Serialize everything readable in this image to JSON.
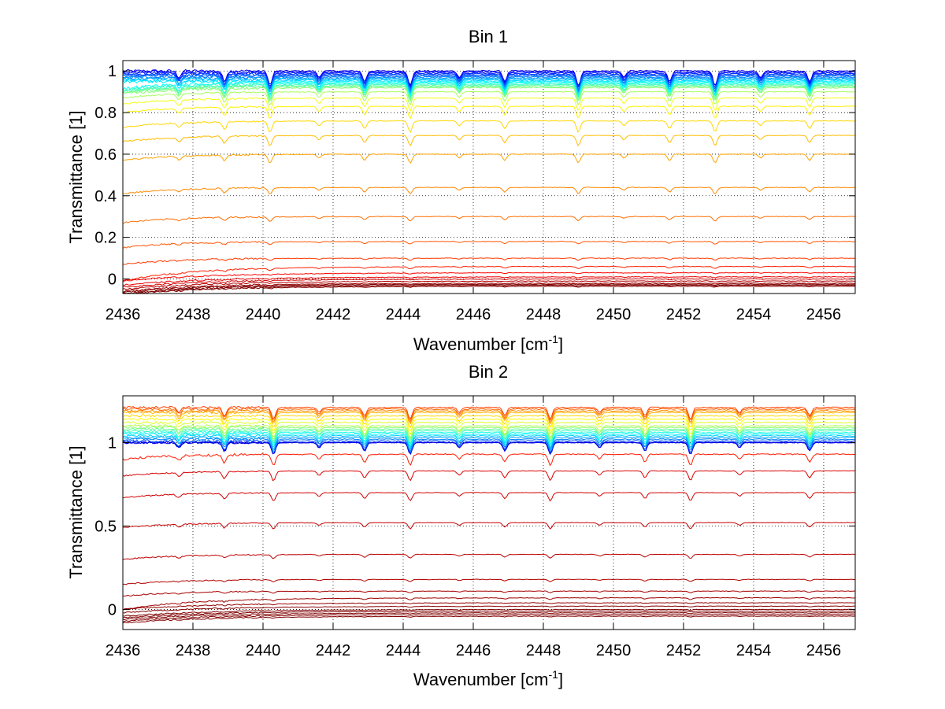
{
  "chart_data": [
    {
      "type": "line",
      "title": "Bin 1",
      "xlabel_main": "Wavenumber [cm",
      "xlabel_sup": "-1",
      "xlabel_end": "]",
      "ylabel": "Transmittance [1]",
      "xlim": [
        2436,
        2456.9
      ],
      "ylim": [
        -0.07,
        1.05
      ],
      "xticks": [
        2436,
        2438,
        2440,
        2442,
        2444,
        2446,
        2448,
        2450,
        2452,
        2454,
        2456
      ],
      "xtick_labels": [
        "2436",
        "2438",
        "2440",
        "2442",
        "2444",
        "2446",
        "2448",
        "2450",
        "2452",
        "2454",
        "2456"
      ],
      "yticks": [
        0,
        0.2,
        0.4,
        0.6,
        0.8,
        1
      ],
      "ytick_labels": [
        "0",
        "0.2",
        "0.4",
        "0.6",
        "0.8",
        "1"
      ],
      "grid": true,
      "colormap": "jet",
      "series_baselines": [
        1.0,
        0.995,
        0.99,
        0.985,
        0.98,
        0.975,
        0.97,
        0.965,
        0.96,
        0.955,
        0.95,
        0.945,
        0.94,
        0.935,
        0.93,
        0.925,
        0.92,
        0.9,
        0.87,
        0.83,
        0.76,
        0.69,
        0.6,
        0.44,
        0.3,
        0.18,
        0.1,
        0.06,
        0.03,
        0.01,
        0.0,
        -0.01,
        -0.02,
        -0.025,
        -0.03,
        -0.035
      ],
      "absorption_lines": [
        2437.6,
        2438.9,
        2440.2,
        2441.6,
        2442.9,
        2444.2,
        2445.6,
        2446.9,
        2449.0,
        2450.3,
        2451.6,
        2452.9,
        2454.2,
        2455.6
      ]
    },
    {
      "type": "line",
      "title": "Bin 2",
      "xlabel_main": "Wavenumber [cm",
      "xlabel_sup": "-1",
      "xlabel_end": "]",
      "ylabel": "Transmittance [1]",
      "xlim": [
        2436,
        2456.9
      ],
      "ylim": [
        -0.12,
        1.28
      ],
      "xticks": [
        2436,
        2438,
        2440,
        2442,
        2444,
        2446,
        2448,
        2450,
        2452,
        2454,
        2456
      ],
      "xtick_labels": [
        "2436",
        "2438",
        "2440",
        "2442",
        "2444",
        "2446",
        "2448",
        "2450",
        "2452",
        "2454",
        "2456"
      ],
      "yticks": [
        0,
        0.5,
        1
      ],
      "ytick_labels": [
        "0",
        "0.5",
        "1"
      ],
      "grid": true,
      "colormap": "jet",
      "series_baselines": [
        1.0,
        1.0,
        1.0,
        1.01,
        1.02,
        1.03,
        1.04,
        1.05,
        1.06,
        1.07,
        1.08,
        1.09,
        1.1,
        1.12,
        1.14,
        1.16,
        1.18,
        1.19,
        1.2,
        1.21,
        0.93,
        0.83,
        0.7,
        0.52,
        0.33,
        0.18,
        0.11,
        0.07,
        0.04,
        0.02,
        0.0,
        -0.01,
        -0.02,
        -0.03,
        -0.04
      ],
      "absorption_lines": [
        2437.6,
        2438.9,
        2440.3,
        2441.6,
        2442.9,
        2444.2,
        2445.6,
        2446.9,
        2448.2,
        2449.6,
        2450.9,
        2452.2,
        2453.6,
        2455.6
      ]
    }
  ]
}
